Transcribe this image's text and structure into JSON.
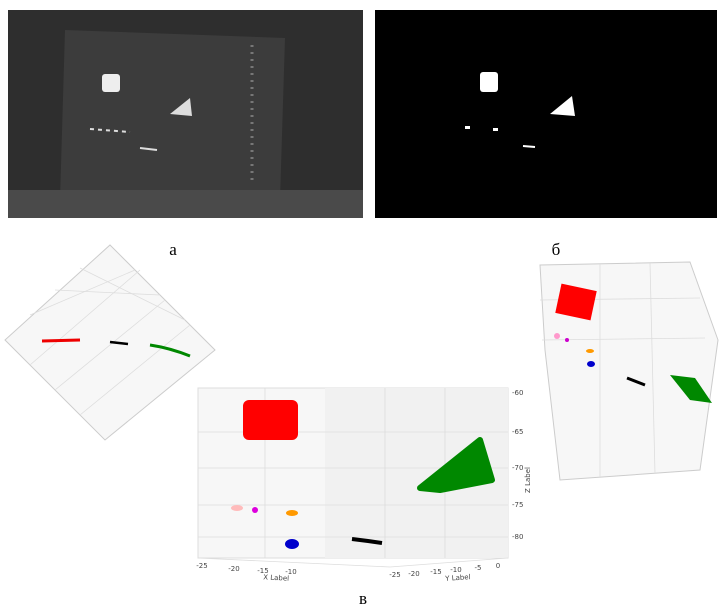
{
  "figure": {
    "panels": [
      {
        "label": "а"
      },
      {
        "label": "б"
      },
      {
        "label": "в"
      }
    ],
    "plot": {
      "x_label": "X Label",
      "y_label": "Y Label",
      "z_label": "Z Label",
      "x_ticks": [
        -25,
        -20,
        -15,
        -10
      ],
      "y_ticks": [
        -25,
        -20,
        -15,
        -10,
        -5,
        0
      ],
      "z_ticks": [
        -60,
        -65,
        -70,
        -75,
        -80
      ]
    }
  }
}
